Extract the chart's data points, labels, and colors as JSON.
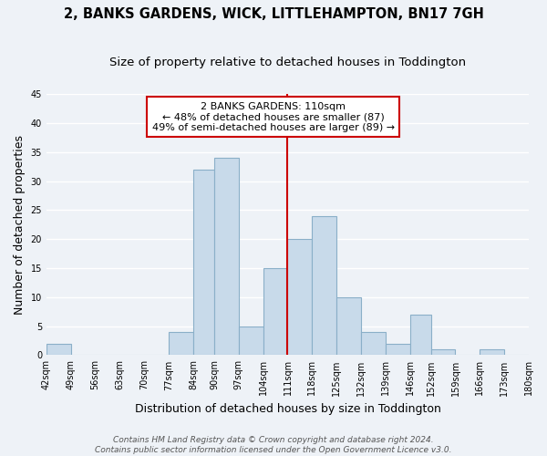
{
  "title": "2, BANKS GARDENS, WICK, LITTLEHAMPTON, BN17 7GH",
  "subtitle": "Size of property relative to detached houses in Toddington",
  "xlabel": "Distribution of detached houses by size in Toddington",
  "ylabel": "Number of detached properties",
  "bin_edges": [
    42,
    49,
    56,
    63,
    70,
    77,
    84,
    90,
    97,
    104,
    111,
    118,
    125,
    132,
    139,
    146,
    152,
    159,
    166,
    173,
    180
  ],
  "bin_labels": [
    "42sqm",
    "49sqm",
    "56sqm",
    "63sqm",
    "70sqm",
    "77sqm",
    "84sqm",
    "90sqm",
    "97sqm",
    "104sqm",
    "111sqm",
    "118sqm",
    "125sqm",
    "132sqm",
    "139sqm",
    "146sqm",
    "152sqm",
    "159sqm",
    "166sqm",
    "173sqm",
    "180sqm"
  ],
  "counts": [
    2,
    0,
    0,
    0,
    0,
    4,
    32,
    34,
    5,
    15,
    20,
    24,
    10,
    4,
    2,
    7,
    1,
    0,
    1,
    0
  ],
  "bar_color": "#c8daea",
  "bar_edge_color": "#8aafc8",
  "vline_x": 111,
  "vline_color": "#cc0000",
  "annotation_line1": "2 BANKS GARDENS: 110sqm",
  "annotation_line2": "← 48% of detached houses are smaller (87)",
  "annotation_line3": "49% of semi-detached houses are larger (89) →",
  "annotation_box_color": "#ffffff",
  "annotation_box_edge": "#cc0000",
  "ylim": [
    0,
    45
  ],
  "yticks": [
    0,
    5,
    10,
    15,
    20,
    25,
    30,
    35,
    40,
    45
  ],
  "footer_line1": "Contains HM Land Registry data © Crown copyright and database right 2024.",
  "footer_line2": "Contains public sector information licensed under the Open Government Licence v3.0.",
  "background_color": "#eef2f7",
  "grid_color": "#ffffff",
  "title_fontsize": 10.5,
  "subtitle_fontsize": 9.5,
  "axis_label_fontsize": 9,
  "tick_fontsize": 7,
  "annotation_fontsize": 8,
  "footer_fontsize": 6.5
}
